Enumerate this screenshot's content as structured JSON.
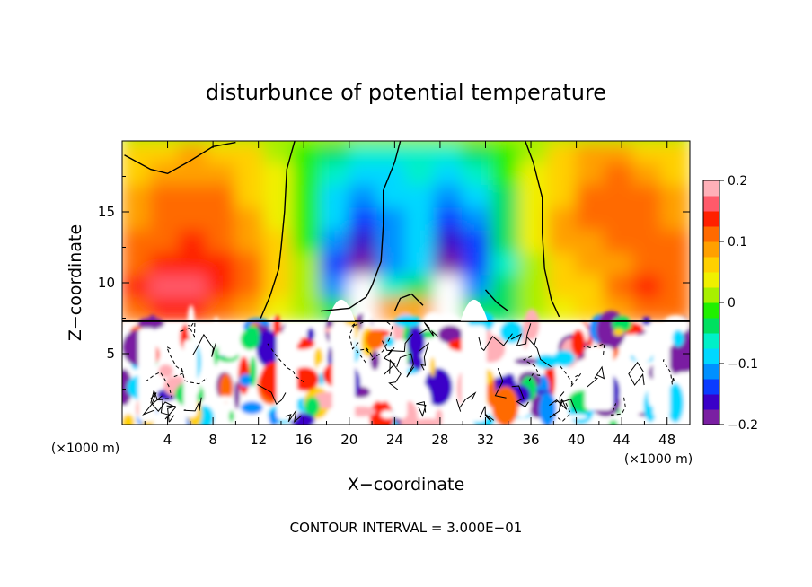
{
  "chart_data": {
    "type": "heatmap",
    "title": "disturbunce of potential temperature",
    "xlabel": "X−coordinate",
    "ylabel": "Z−coordinate",
    "x_unit": "(×1000 m)",
    "y_unit": "(×1000 m)",
    "footer": "CONTOUR INTERVAL = 3.000E−01",
    "xlim": [
      0,
      50
    ],
    "ylim": [
      0,
      20
    ],
    "x_ticks": [
      4,
      8,
      12,
      16,
      20,
      24,
      28,
      32,
      36,
      40,
      44,
      48
    ],
    "x_tick_labels": [
      "4",
      "8",
      "12",
      "16",
      "20",
      "24",
      "28",
      "32",
      "36",
      "40",
      "44",
      "48"
    ],
    "y_ticks": [
      5,
      10,
      15
    ],
    "y_tick_labels": [
      "5",
      "10",
      "15"
    ],
    "colorbar": {
      "min": -0.2,
      "max": 0.2,
      "ticks": [
        0.2,
        0.1,
        0,
        -0.1,
        -0.2
      ],
      "tick_labels": [
        "0.2",
        "0.1",
        "0",
        "−0.1",
        "−0.2"
      ],
      "colors": [
        "#7a1fa2",
        "#3a00c8",
        "#0a3cff",
        "#0090ff",
        "#00d8ff",
        "#00f0c8",
        "#00e060",
        "#20f000",
        "#a8f000",
        "#f0f000",
        "#ffd000",
        "#ffa000",
        "#ff6a00",
        "#ff2000",
        "#ff5a6a",
        "#ffb0b8"
      ]
    },
    "upper_layer_field": [
      [
        0.05,
        0.06,
        0.08,
        0.07,
        0.05,
        0.02,
        -0.02,
        -0.05,
        -0.07,
        -0.06,
        -0.06,
        -0.07,
        -0.05,
        -0.01,
        0.02,
        0.06,
        0.09,
        0.08,
        0.07,
        0.06
      ],
      [
        0.06,
        0.08,
        0.09,
        0.09,
        0.06,
        0.03,
        -0.02,
        -0.06,
        -0.09,
        -0.08,
        -0.07,
        -0.09,
        -0.07,
        -0.02,
        0.03,
        0.06,
        0.09,
        0.1,
        0.09,
        0.07
      ],
      [
        0.08,
        0.1,
        0.1,
        0.1,
        0.07,
        0.04,
        -0.02,
        -0.08,
        -0.11,
        -0.1,
        -0.09,
        -0.11,
        -0.09,
        -0.03,
        0.03,
        0.07,
        0.1,
        0.11,
        0.1,
        0.08
      ],
      [
        0.09,
        0.11,
        0.12,
        0.11,
        0.08,
        0.04,
        -0.02,
        -0.1,
        -0.14,
        -0.11,
        -0.09,
        -0.13,
        -0.11,
        -0.04,
        0.03,
        0.08,
        0.1,
        0.11,
        0.1,
        0.09
      ],
      [
        0.1,
        0.12,
        0.13,
        0.12,
        0.09,
        0.05,
        -0.01,
        -0.12,
        -0.17,
        -0.12,
        -0.1,
        -0.16,
        -0.13,
        -0.05,
        0.03,
        0.08,
        0.09,
        0.1,
        0.11,
        0.1
      ],
      [
        0.12,
        0.14,
        0.15,
        0.13,
        0.1,
        0.05,
        0.0,
        -0.14,
        -0.2,
        -0.12,
        -0.1,
        -0.19,
        -0.15,
        -0.06,
        0.02,
        0.07,
        0.08,
        0.09,
        0.12,
        0.11
      ],
      [
        0.14,
        0.16,
        0.16,
        0.14,
        0.1,
        0.05,
        0.0,
        -0.12,
        0.2,
        -0.06,
        -0.04,
        0.2,
        -0.12,
        -0.05,
        0.02,
        0.06,
        0.07,
        0.1,
        0.13,
        0.12
      ],
      [
        0.12,
        0.14,
        0.14,
        0.12,
        0.08,
        0.03,
        0.0,
        -0.05,
        0.2,
        0.08,
        0.08,
        0.2,
        -0.05,
        -0.03,
        0.01,
        0.04,
        0.05,
        0.09,
        0.11,
        0.1
      ]
    ],
    "lower_layer": "turbulent mixed region below z ≈ 7.3 with strong +/− anomalies and contour lines"
  }
}
